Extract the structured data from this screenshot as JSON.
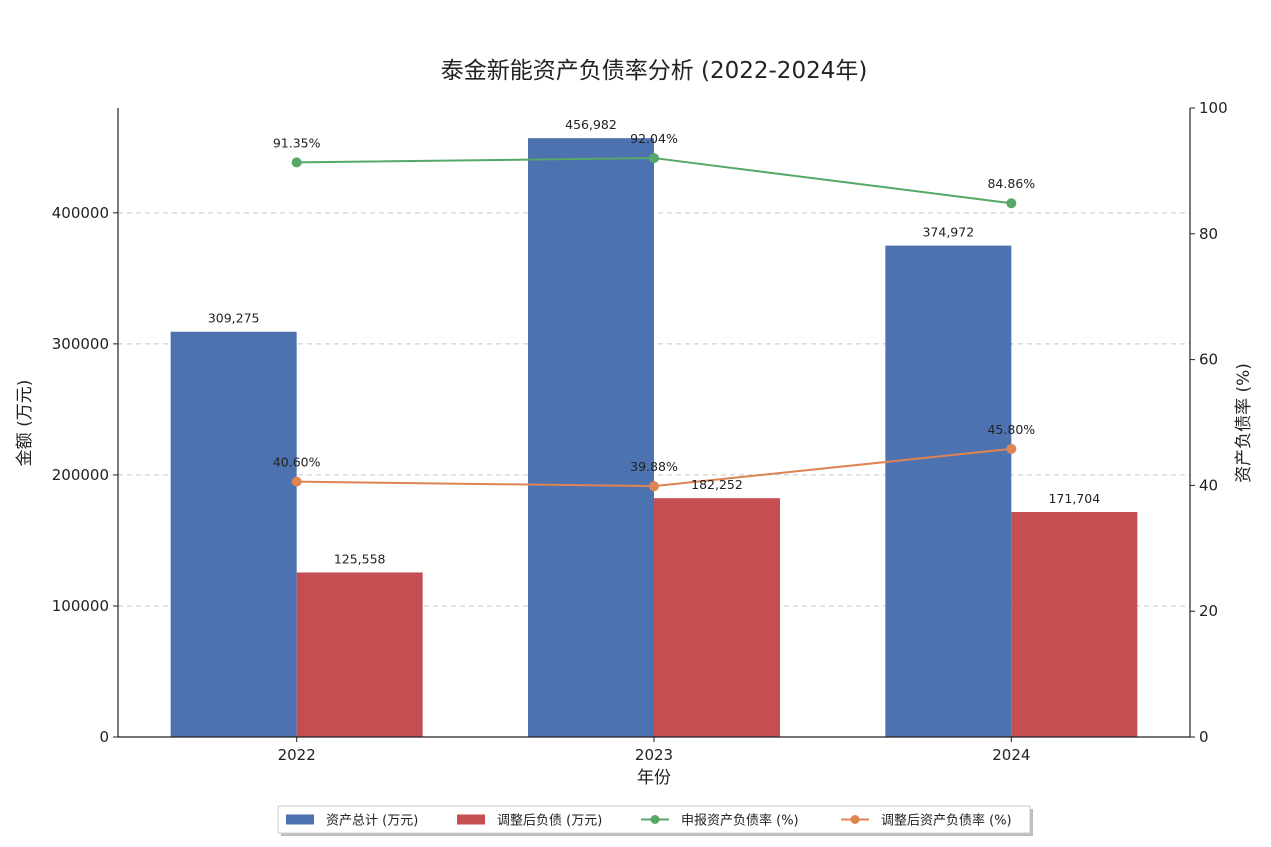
{
  "chart_data": {
    "type": "bar",
    "title": "泰金新能资产负债率分析 (2022-2024年)",
    "xlabel": "年份",
    "ylabel": "金额 (万元)",
    "y2label": "资产负债率 (%)",
    "categories": [
      "2022",
      "2023",
      "2024"
    ],
    "ylim": [
      0,
      480000
    ],
    "y2lim": [
      0,
      100
    ],
    "yticks": [
      "0",
      "100000",
      "200000",
      "300000",
      "400000"
    ],
    "y2ticks": [
      "0",
      "20",
      "40",
      "60",
      "80",
      "100"
    ],
    "grid": "horizontal dashed",
    "legend_position": "bottom-center",
    "bar_series": [
      {
        "name": "资产总计 (万元)",
        "color": "#4c72b0",
        "values": [
          309275,
          456982,
          374972
        ],
        "labels": [
          "309,275",
          "456,982",
          "374,972"
        ]
      },
      {
        "name": "调整后负债 (万元)",
        "color": "#c44e52",
        "values": [
          125558,
          182252,
          171704
        ],
        "labels": [
          "125,558",
          "182,252",
          "171,704"
        ]
      }
    ],
    "line_series": [
      {
        "name": "申报资产负债率 (%)",
        "color": "#55a868",
        "values": [
          91.35,
          92.04,
          84.86
        ],
        "labels": [
          "91.35%",
          "92.04%",
          "84.86%"
        ]
      },
      {
        "name": "调整后资产负债率 (%)",
        "color": "#dd8452",
        "values": [
          40.6,
          39.88,
          45.8
        ],
        "labels": [
          "40.60%",
          "39.88%",
          "45.80%"
        ]
      }
    ]
  }
}
